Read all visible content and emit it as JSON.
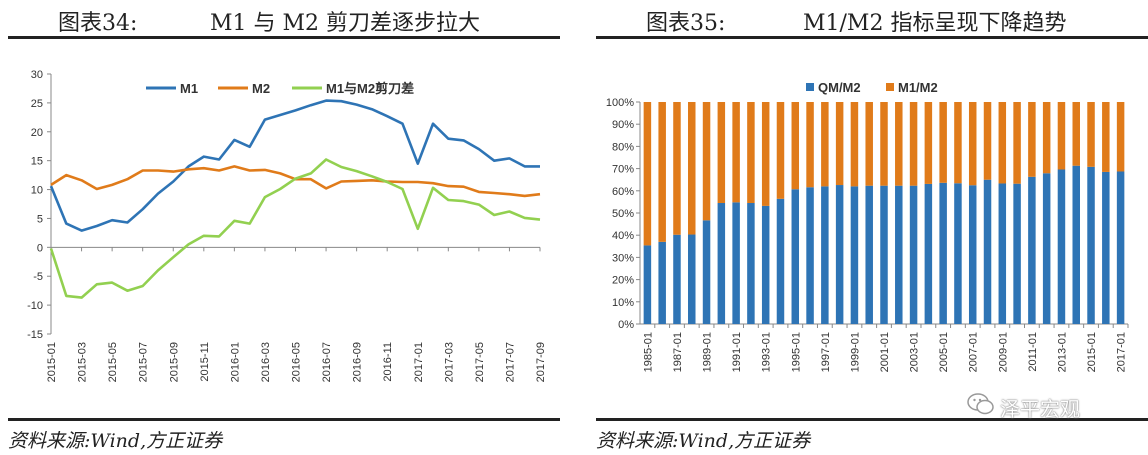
{
  "left_panel": {
    "figure_no": "图表34:",
    "title": "M1 与 M2 剪刀差逐步拉大",
    "source": "资料来源:Wind,方正证券"
  },
  "right_panel": {
    "figure_no": "图表35:",
    "title": "M1/M2 指标呈现下降趋势",
    "source": "资料来源:Wind,方正证券",
    "watermark": "泽平宏观"
  },
  "colors": {
    "m1": "#2e74b5",
    "m2": "#e07b1a",
    "gap": "#92d050",
    "qm": "#2e74b5",
    "ratio": "#e07b1a"
  },
  "chart_data": [
    {
      "type": "line",
      "title": "M1 与 M2 剪刀差逐步拉大",
      "x_tick_labels": [
        "2015-01",
        "2015-03",
        "2015-05",
        "2015-07",
        "2015-09",
        "2015-11",
        "2016-01",
        "2016-03",
        "2016-05",
        "2016-07",
        "2016-09",
        "2016-11",
        "2017-01",
        "2017-03",
        "2017-05",
        "2017-07",
        "2017-09"
      ],
      "x": [
        "2015-01",
        "2015-02",
        "2015-03",
        "2015-04",
        "2015-05",
        "2015-06",
        "2015-07",
        "2015-08",
        "2015-09",
        "2015-10",
        "2015-11",
        "2015-12",
        "2016-01",
        "2016-02",
        "2016-03",
        "2016-04",
        "2016-05",
        "2016-06",
        "2016-07",
        "2016-08",
        "2016-09",
        "2016-10",
        "2016-11",
        "2016-12",
        "2017-01",
        "2017-02",
        "2017-03",
        "2017-04",
        "2017-05",
        "2017-06",
        "2017-07",
        "2017-08",
        "2017-09"
      ],
      "ylim": [
        -15,
        30
      ],
      "y_ticks": [
        -15,
        -10,
        -5,
        0,
        5,
        10,
        15,
        20,
        25,
        30
      ],
      "legend_position": "top",
      "series": [
        {
          "name": "M1",
          "values": [
            10.6,
            4.1,
            2.9,
            3.7,
            4.7,
            4.3,
            6.6,
            9.3,
            11.4,
            14.0,
            15.7,
            15.2,
            18.6,
            17.4,
            22.1,
            22.9,
            23.7,
            24.6,
            25.4,
            25.3,
            24.7,
            23.9,
            22.7,
            21.4,
            14.5,
            21.4,
            18.8,
            18.5,
            17.0,
            15.0,
            15.4,
            14.0,
            14.0
          ]
        },
        {
          "name": "M2",
          "values": [
            10.8,
            12.5,
            11.6,
            10.1,
            10.8,
            11.8,
            13.3,
            13.3,
            13.1,
            13.5,
            13.7,
            13.3,
            14.0,
            13.3,
            13.4,
            12.8,
            11.8,
            11.8,
            10.2,
            11.4,
            11.5,
            11.6,
            11.4,
            11.3,
            11.3,
            11.1,
            10.6,
            10.5,
            9.6,
            9.4,
            9.2,
            8.9,
            9.2
          ]
        },
        {
          "name": "M1与M2剪刀差",
          "values": [
            -0.2,
            -8.4,
            -8.7,
            -6.4,
            -6.1,
            -7.5,
            -6.7,
            -4.0,
            -1.7,
            0.5,
            2.0,
            1.9,
            4.6,
            4.1,
            8.7,
            10.1,
            11.9,
            12.8,
            15.2,
            13.9,
            13.2,
            12.3,
            11.3,
            10.1,
            3.2,
            10.3,
            8.2,
            8.0,
            7.4,
            5.6,
            6.2,
            5.1,
            4.8
          ]
        }
      ]
    },
    {
      "type": "bar",
      "title": "M1/M2 指标呈现下降趋势",
      "categories": [
        "1985-01",
        "1986-01",
        "1987-01",
        "1988-01",
        "1989-01",
        "1990-01",
        "1991-01",
        "1992-01",
        "1993-01",
        "1994-01",
        "1995-01",
        "1996-01",
        "1997-01",
        "1998-01",
        "1999-01",
        "2000-01",
        "2001-01",
        "2002-01",
        "2003-01",
        "2004-01",
        "2005-01",
        "2006-01",
        "2007-01",
        "2008-01",
        "2009-01",
        "2010-01",
        "2011-01",
        "2012-01",
        "2013-01",
        "2014-01",
        "2015-01",
        "2016-01",
        "2017-01"
      ],
      "x_tick_labels": [
        "1985-01",
        "1987-01",
        "1989-01",
        "1991-01",
        "1993-01",
        "1995-01",
        "1997-01",
        "1999-01",
        "2001-01",
        "2003-01",
        "2005-01",
        "2007-01",
        "2009-01",
        "2011-01",
        "2013-01",
        "2015-01",
        "2017-01"
      ],
      "stacked": true,
      "ylim": [
        0,
        100
      ],
      "y_tick_labels": [
        "0%",
        "10%",
        "20%",
        "30%",
        "40%",
        "50%",
        "60%",
        "70%",
        "80%",
        "90%",
        "100%"
      ],
      "legend_position": "top",
      "series": [
        {
          "name": "QM/M2",
          "values": [
            35.4,
            37.0,
            40.2,
            40.3,
            46.7,
            54.5,
            54.8,
            54.5,
            53.2,
            56.4,
            60.7,
            61.6,
            62.0,
            62.6,
            62.0,
            62.3,
            62.3,
            62.3,
            62.3,
            63.1,
            63.6,
            63.4,
            62.5,
            65.0,
            63.3,
            63.2,
            66.3,
            67.9,
            69.6,
            71.3,
            70.8,
            68.5,
            68.7
          ]
        },
        {
          "name": "M1/M2",
          "values": [
            64.6,
            63.0,
            59.8,
            59.7,
            53.3,
            45.5,
            45.2,
            45.5,
            46.8,
            43.6,
            39.3,
            38.4,
            38.0,
            37.4,
            38.0,
            37.7,
            37.7,
            37.7,
            37.7,
            36.9,
            36.4,
            36.6,
            37.5,
            35.0,
            36.7,
            36.8,
            33.7,
            32.1,
            30.4,
            28.7,
            29.2,
            31.5,
            31.3
          ]
        }
      ]
    }
  ]
}
